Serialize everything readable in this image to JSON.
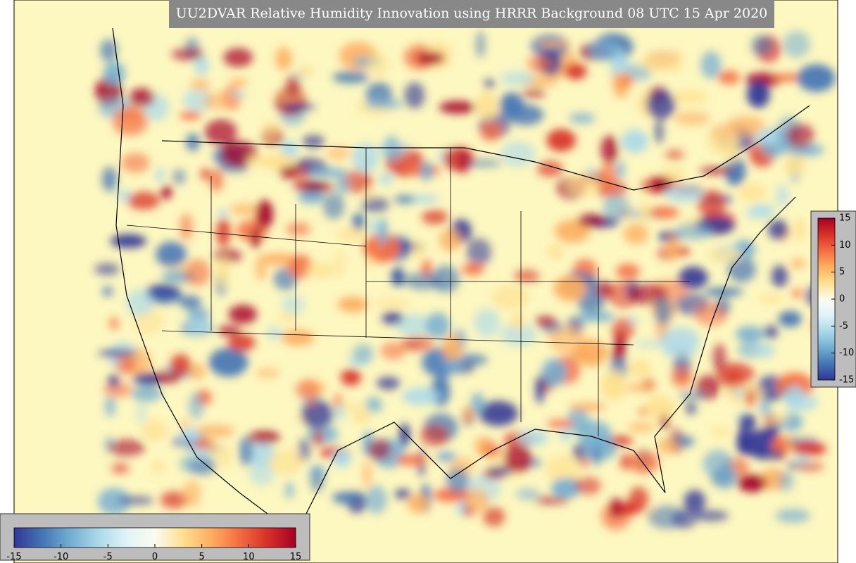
{
  "title": "UU2DVAR Relative Humidity Innovation using HRRR Background 08 UTC 15 Apr 2020",
  "colorbars": [
    {
      "orientation": "horizontal",
      "range": [
        -15,
        15
      ],
      "ticks": [
        -15,
        -10,
        -5,
        0,
        5,
        10,
        15
      ],
      "colors": [
        "#313695",
        "#4575b4",
        "#74add1",
        "#abd9e9",
        "#e0f3f8",
        "#fbfbf0",
        "#fee090",
        "#fdae61",
        "#f46d43",
        "#d73027",
        "#a50026"
      ]
    },
    {
      "orientation": "vertical",
      "range": [
        -15,
        15
      ],
      "ticks": [
        -15,
        -10,
        -5,
        0,
        5,
        10,
        15
      ],
      "colors": [
        "#313695",
        "#4575b4",
        "#74add1",
        "#abd9e9",
        "#e0f3f8",
        "#fbfbf0",
        "#fee090",
        "#fdae61",
        "#f46d43",
        "#d73027",
        "#a50026"
      ]
    }
  ]
}
